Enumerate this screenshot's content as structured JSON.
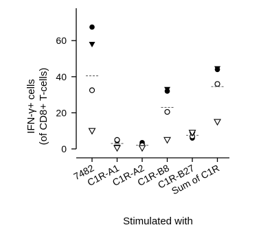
{
  "chart_data": {
    "type": "scatter",
    "xlabel": "Stimulated with",
    "ylabel_lines": [
      "IFN-γ+ cells",
      "(of CD8+ T-cells)"
    ],
    "categories": [
      "7482",
      "C1R-A1",
      "C1R-A2",
      "C1R-B8",
      "C1R-B27",
      "Sum of C1R"
    ],
    "ylim": [
      0,
      75
    ],
    "yticks": [
      "0",
      "20",
      "40",
      "60"
    ],
    "grid": false,
    "legend": "none",
    "series": [
      {
        "marker": "filled-circle",
        "values": [
          67.5,
          4.5,
          3.5,
          32,
          6,
          44
        ]
      },
      {
        "marker": "filled-triangle",
        "values": [
          58,
          1,
          1.5,
          33,
          8,
          44.5
        ]
      },
      {
        "marker": "open-circle",
        "values": [
          32.5,
          5,
          2,
          20.5,
          7,
          36
        ]
      },
      {
        "marker": "open-triangle",
        "values": [
          10,
          0.5,
          0.5,
          5,
          9,
          15
        ]
      },
      {
        "marker": "dash-mean",
        "values": [
          40.5,
          3,
          2,
          23,
          7.5,
          34.5
        ]
      }
    ],
    "colors": {
      "ink": "#000000",
      "mean": "#555555"
    }
  }
}
